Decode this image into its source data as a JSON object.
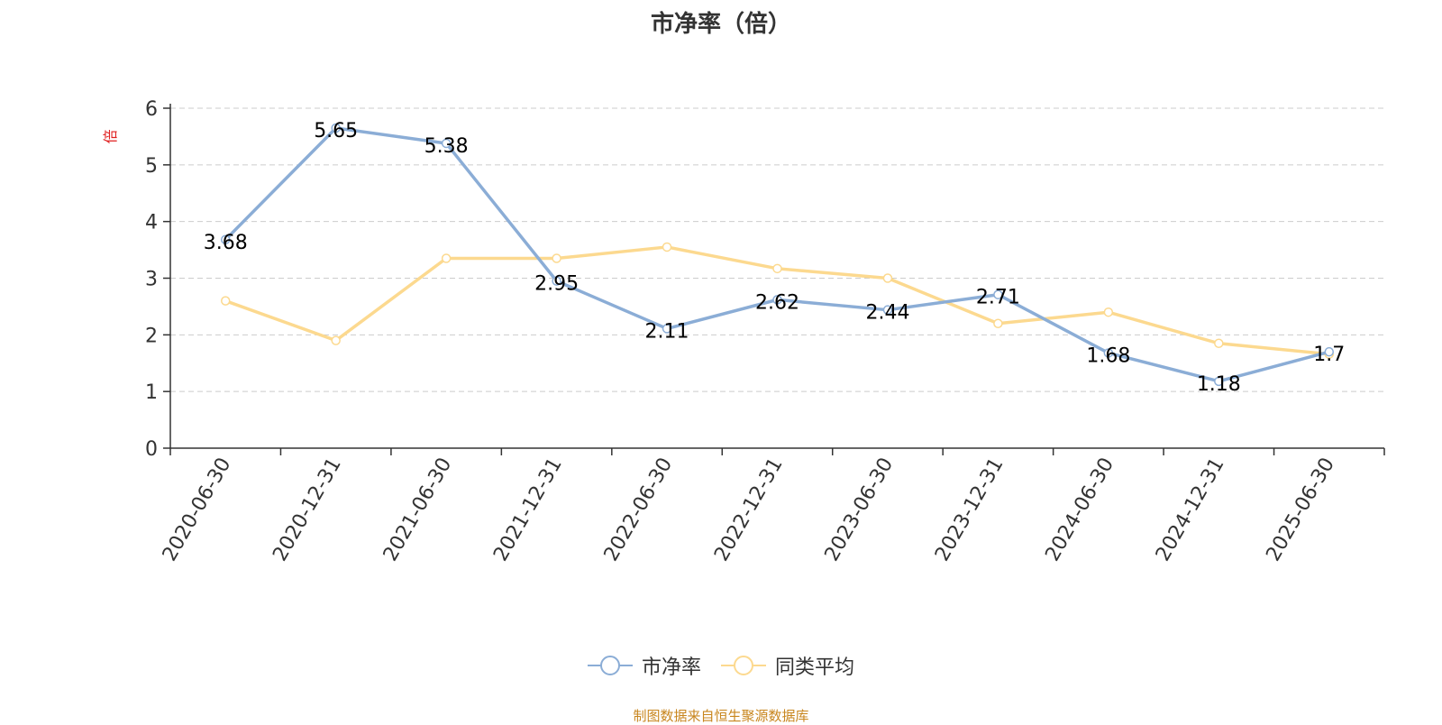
{
  "title": "市净率（倍）",
  "footer": "制图数据来自恒生聚源数据库",
  "colors": {
    "series_0": "#8badd6",
    "series_1": "#fcd98f",
    "axis": "#333333",
    "grid": "#cccccc",
    "ylabel": "#e02020"
  },
  "chart_data": {
    "type": "line",
    "ylabel": "倍",
    "xlabel": "",
    "ylim": [
      0,
      6
    ],
    "yticks": [
      0,
      1,
      2,
      3,
      4,
      5,
      6
    ],
    "grid": "dashed horizontal",
    "legend_position": "bottom-center",
    "categories": [
      "2020-06-30",
      "2020-12-31",
      "2021-06-30",
      "2021-12-31",
      "2022-06-30",
      "2022-12-31",
      "2023-06-30",
      "2023-12-31",
      "2024-06-30",
      "2024-12-31",
      "2025-06-30"
    ],
    "series": [
      {
        "name": "市净率",
        "values": [
          3.68,
          5.65,
          5.38,
          2.95,
          2.11,
          2.62,
          2.44,
          2.71,
          1.68,
          1.18,
          1.7
        ],
        "labels": [
          "3.68",
          "5.65",
          "5.38",
          "2.95",
          "2.11",
          "2.62",
          "2.44",
          "2.71",
          "1.68",
          "1.18",
          "1.7"
        ]
      },
      {
        "name": "同类平均",
        "values": [
          2.6,
          1.9,
          3.35,
          3.35,
          3.55,
          3.17,
          3.0,
          2.2,
          2.4,
          1.85,
          1.66
        ]
      }
    ]
  }
}
